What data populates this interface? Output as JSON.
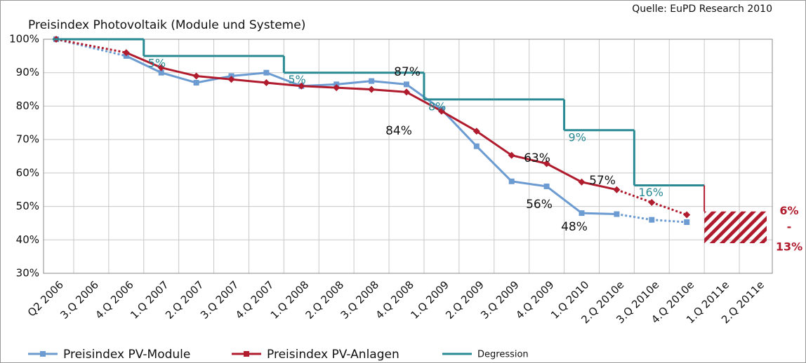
{
  "chart_data": {
    "type": "line",
    "title": "Preisindex Photovoltaik (Module und Systeme)",
    "source": "Quelle: EuPD Research 2010",
    "categories": [
      "Q2 2006",
      "3.Q 2006",
      "4.Q 2006",
      "1.Q 2007",
      "2.Q 2007",
      "3.Q 2007",
      "4.Q 2007",
      "1.Q 2008",
      "2.Q 2008",
      "3.Q 2008",
      "4.Q 2008",
      "1.Q 2009",
      "2.Q 2009",
      "3.Q 2009",
      "4.Q 2009",
      "1.Q 2010",
      "2.Q 2010e",
      "3.Q 2010e",
      "4.Q 2010e",
      "1.Q 2011e",
      "2.Q 2011e"
    ],
    "series": [
      {
        "name": "Preisindex PV-Module",
        "color": "#6c9bd2",
        "values": [
          100,
          null,
          95,
          90,
          87,
          89,
          90,
          86,
          86.5,
          87.5,
          86.5,
          79,
          68,
          57.5,
          56,
          48,
          47.7,
          46,
          45.3,
          null,
          null
        ]
      },
      {
        "name": "Preisindex PV-Anlagen",
        "color": "#b01c2e",
        "values": [
          100,
          null,
          96,
          91.5,
          89,
          88,
          87,
          86,
          85.5,
          85,
          84.2,
          78.5,
          72.5,
          65.3,
          62.8,
          57.3,
          55,
          51.2,
          47.5,
          null,
          null
        ]
      },
      {
        "name": "Degression",
        "color": "#2a8a94",
        "type": "step",
        "values": [
          100,
          100,
          100,
          95,
          95,
          95,
          95,
          90,
          90,
          90,
          90,
          82,
          82,
          82,
          82,
          72.8,
          72.8,
          56.3,
          56.3,
          null,
          null
        ],
        "step_labels": [
          "5%",
          "5%",
          "8%",
          "9%",
          "16%"
        ]
      }
    ],
    "forecast_range": {
      "high": 48.5,
      "low": 39,
      "color": "#b01c2e",
      "labels": [
        "6%",
        "-",
        "13%"
      ]
    },
    "annotations": [
      "87%",
      "84%",
      "63%",
      "56%",
      "57%",
      "48%"
    ],
    "ylim": [
      30,
      100
    ],
    "yticks": [
      {
        "value": 30,
        "label": "30%"
      },
      {
        "value": 40,
        "label": "40%"
      },
      {
        "value": 50,
        "label": "50%"
      },
      {
        "value": 60,
        "label": "60%"
      },
      {
        "value": 70,
        "label": "70%"
      },
      {
        "value": 80,
        "label": "80%"
      },
      {
        "value": 90,
        "label": "90%"
      },
      {
        "value": 100,
        "label": "100%"
      }
    ],
    "grid": true
  }
}
